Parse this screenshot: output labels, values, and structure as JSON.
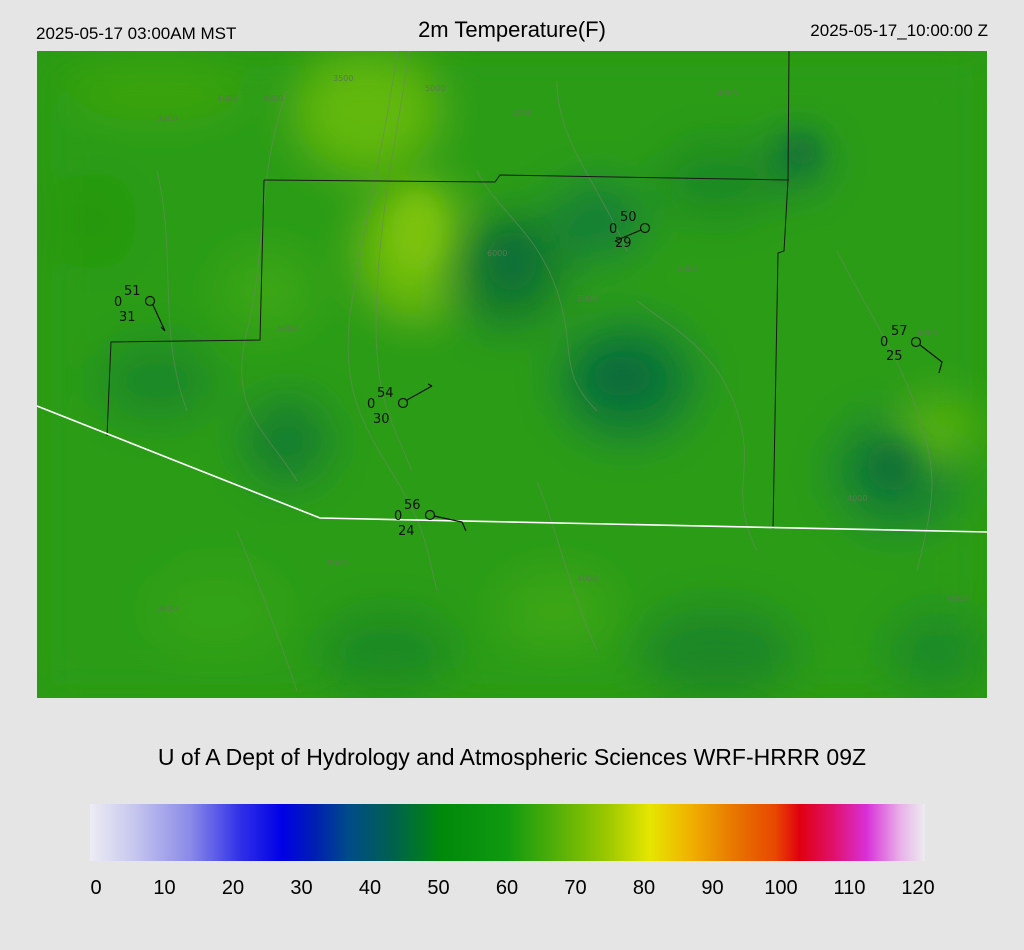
{
  "header": {
    "local_time": "2025-05-17 03:00AM MST",
    "title": "2m Temperature(F)",
    "valid_time": "2025-05-17_10:00:00 Z"
  },
  "credit": "U of A Dept of Hydrology and Atmospheric Sciences WRF-HRRR 09Z",
  "colorbar": {
    "ticks": [
      "0",
      "10",
      "20",
      "30",
      "40",
      "50",
      "60",
      "70",
      "80",
      "90",
      "100",
      "110",
      "120"
    ],
    "min": 0,
    "max": 120
  },
  "stations": [
    {
      "temp": "51",
      "cloud": "0",
      "dew": "31"
    },
    {
      "temp": "50",
      "cloud": "0",
      "dew": "29"
    },
    {
      "temp": "54",
      "cloud": "0",
      "dew": "30"
    },
    {
      "temp": "56",
      "cloud": "0",
      "dew": "24"
    },
    {
      "temp": "57",
      "cloud": "0",
      "dew": "25"
    }
  ],
  "contour_labels": [
    "3500",
    "3000",
    "4000",
    "4000",
    "4000",
    "5000",
    "6000",
    "4000",
    "5000",
    "5000",
    "4000",
    "5000",
    "4000",
    "4000",
    "5000",
    "3000",
    "4000"
  ],
  "colors": {
    "background": "#e5e5e5",
    "map_base": "#2a9a10",
    "state_boundary": "#ffffff",
    "county_lines": "#1a1a1a"
  }
}
